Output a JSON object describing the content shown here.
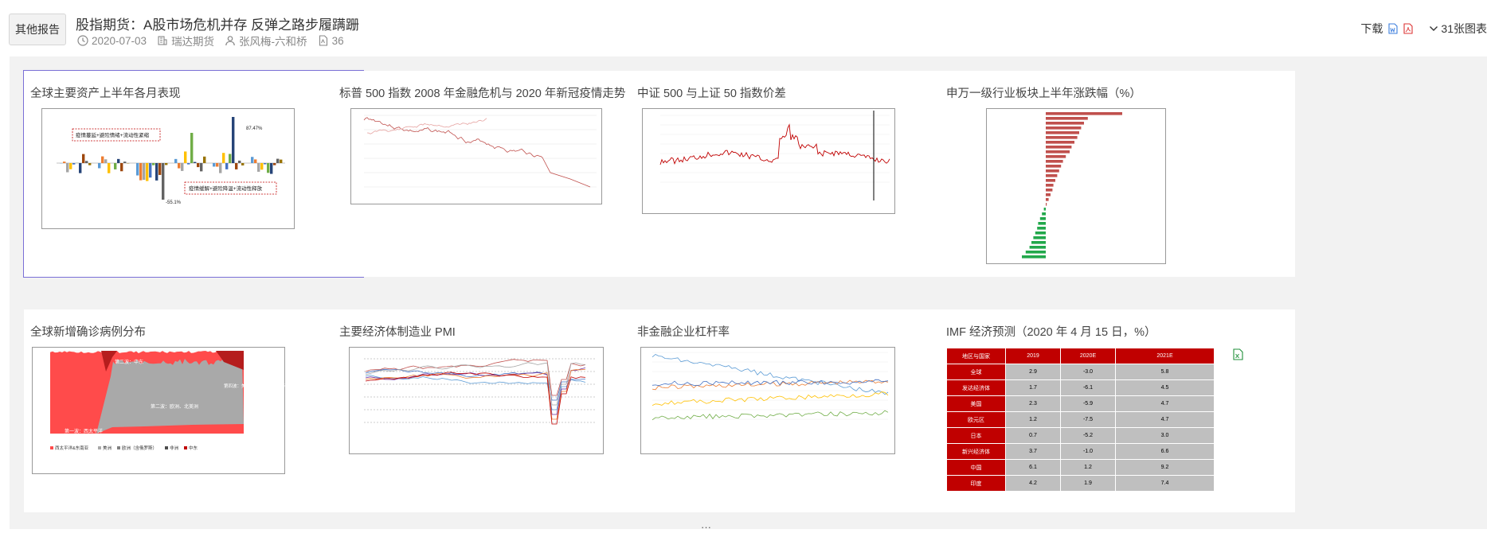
{
  "header": {
    "back_label": "其他报告",
    "title": "股指期货：A股市场危机并存 反弹之路步履蹒跚",
    "date": "2020-07-03",
    "source": "瑞达期货",
    "authors": "张风梅-六和桥",
    "pages": "36",
    "download_label": "下载",
    "chart_count": "31张图表"
  },
  "cards": [
    {
      "title": "全球主要资产上半年各月表现"
    },
    {
      "title": "标普 500 指数 2008 年金融危机与 2020 年新冠疫情走势（基期..."
    },
    {
      "title": "中证 500 与上证 50 指数价差"
    },
    {
      "title": "申万一级行业板块上半年涨跌幅（%）"
    },
    {
      "title": "全球新增确诊病例分布"
    },
    {
      "title": "主要经济体制造业 PMI"
    },
    {
      "title": "非金融企业杠杆率"
    },
    {
      "title": "IMF 经济预测（2020 年 4 月 15 日，%）"
    }
  ],
  "thumb_text": {
    "c1_box1": "疫情蔓延+避险情绪+流动性紧缩",
    "c1_box2": "疫情缓解+避险降温+流动性释放",
    "c1_hi": "87.47%",
    "c1_lo": "-55.1%",
    "c5_w1": "第一波：西太平洋",
    "c5_w2a": "第二波：中东",
    "c5_w2b": "第二波：欧洲、北美洲",
    "c5_w3": "第四波：美洲、中东、非洲（持续）",
    "c5_legend": [
      "西太平洋&东南亚",
      "美洲",
      "欧洲（含俄罗斯）",
      "非洲",
      "中东"
    ]
  },
  "imf": {
    "headers": [
      "地区与国家",
      "2019",
      "2020E",
      "2021E"
    ],
    "rows": [
      [
        "全球",
        "2.9",
        "-3.0",
        "5.8"
      ],
      [
        "发达经济体",
        "1.7",
        "-6.1",
        "4.5"
      ],
      [
        "美国",
        "2.3",
        "-5.9",
        "4.7"
      ],
      [
        "欧元区",
        "1.2",
        "-7.5",
        "4.7"
      ],
      [
        "日本",
        "0.7",
        "-5.2",
        "3.0"
      ],
      [
        "新兴经济体",
        "3.7",
        "-1.0",
        "6.6"
      ],
      [
        "中国",
        "6.1",
        "1.2",
        "9.2"
      ],
      [
        "印度",
        "4.2",
        "1.9",
        "7.4"
      ]
    ]
  },
  "colors": {
    "red": "#c00000",
    "accent": "#2b6fd6"
  }
}
